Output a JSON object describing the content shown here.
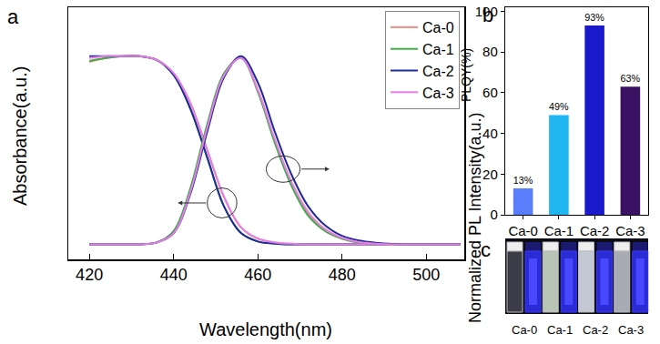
{
  "chart_data": [
    {
      "panel": "a",
      "type": "line",
      "x_label": "Wavelength(nm)",
      "y_label": "Absorbance(a.u.)",
      "y2_label": "Normalized PL Intensity(a.u.)",
      "x": [
        420,
        424,
        428,
        432,
        436,
        440,
        444,
        448,
        452,
        456,
        460,
        464,
        468,
        472,
        476,
        480,
        484,
        488,
        492,
        496,
        500,
        504,
        508
      ],
      "xlim": [
        415,
        509
      ],
      "xticks": [
        420,
        440,
        460,
        480,
        500
      ],
      "ylim": [
        -0.08,
        1.26
      ],
      "y2lim": [
        -0.08,
        1.26
      ],
      "tick_labels": "x",
      "legend": "upper right",
      "series": [
        {
          "name": "Ca-0",
          "color": "#f28b82",
          "values": [
            0.97,
            0.99,
            1.0,
            1.0,
            0.98,
            0.91,
            0.75,
            0.5,
            0.25,
            0.09,
            0.03,
            0.01,
            0.003,
            0,
            0,
            0,
            0,
            0,
            0,
            0,
            0,
            0,
            0
          ]
        },
        {
          "name": "Ca-1",
          "color": "#3fae49",
          "values": [
            0.975,
            0.99,
            1.0,
            1.0,
            0.98,
            0.9,
            0.72,
            0.46,
            0.2,
            0.06,
            0.015,
            0.004,
            0,
            0,
            0,
            0,
            0,
            0,
            0,
            0,
            0,
            0,
            0
          ]
        },
        {
          "name": "Ca-2",
          "color": "#1f2a9c",
          "values": [
            1.0,
            1.0,
            1.0,
            1.0,
            0.98,
            0.9,
            0.72,
            0.46,
            0.2,
            0.06,
            0.015,
            0.004,
            0,
            0,
            0,
            0,
            0,
            0,
            0,
            0,
            0,
            0,
            0
          ]
        },
        {
          "name": "Ca-3",
          "color": "#e87de8",
          "values": [
            0.99,
            1.0,
            1.0,
            1.0,
            0.98,
            0.91,
            0.75,
            0.5,
            0.25,
            0.09,
            0.03,
            0.01,
            0.003,
            0,
            0,
            0,
            0,
            0,
            0,
            0,
            0,
            0,
            0
          ]
        },
        {
          "name": "Ca-0",
          "color": "#f28b82",
          "axis": "y2",
          "values": [
            0,
            0,
            0,
            0,
            0.01,
            0.06,
            0.28,
            0.62,
            0.9,
            0.99,
            0.82,
            0.55,
            0.32,
            0.16,
            0.07,
            0.03,
            0.01,
            0.004,
            0,
            0,
            0,
            0,
            0
          ]
        },
        {
          "name": "Ca-1",
          "color": "#3fae49",
          "axis": "y2",
          "values": [
            0,
            0,
            0,
            0,
            0.01,
            0.07,
            0.3,
            0.64,
            0.91,
            0.99,
            0.81,
            0.54,
            0.31,
            0.15,
            0.07,
            0.03,
            0.01,
            0.004,
            0,
            0,
            0,
            0,
            0
          ]
        },
        {
          "name": "Ca-2",
          "color": "#1f2a9c",
          "axis": "y2",
          "values": [
            0,
            0,
            0,
            0,
            0.01,
            0.06,
            0.27,
            0.6,
            0.89,
            1.0,
            0.86,
            0.6,
            0.37,
            0.2,
            0.1,
            0.045,
            0.02,
            0.008,
            0.002,
            0,
            0,
            0,
            0
          ]
        },
        {
          "name": "Ca-3",
          "color": "#e87de8",
          "axis": "y2",
          "values": [
            0,
            0,
            0,
            0,
            0.01,
            0.06,
            0.28,
            0.62,
            0.9,
            0.99,
            0.82,
            0.56,
            0.33,
            0.17,
            0.08,
            0.035,
            0.012,
            0.004,
            0,
            0,
            0,
            0,
            0
          ]
        }
      ]
    },
    {
      "panel": "b",
      "type": "bar",
      "y_label": "PLQY(%)",
      "categories": [
        "Ca-0",
        "Ca-1",
        "Ca-2",
        "Ca-3"
      ],
      "values": [
        13,
        49,
        93,
        63
      ],
      "value_labels": [
        "13%",
        "49%",
        "93%",
        "63%"
      ],
      "colors": [
        "#5a7dfb",
        "#1fb6f2",
        "#1a1acb",
        "#3b1163"
      ],
      "ylim": [
        0,
        102
      ],
      "yticks": [
        0,
        20,
        40,
        60,
        80,
        100
      ],
      "data_labels": true
    }
  ],
  "photo": {
    "panel": "c",
    "labels": [
      "Ca-0",
      "Ca-1",
      "Ca-2",
      "Ca-3"
    ]
  }
}
